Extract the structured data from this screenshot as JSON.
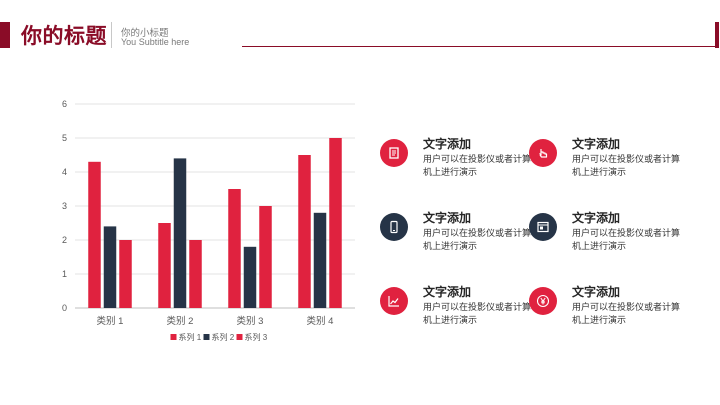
{
  "header": {
    "title": "你的标题",
    "subtitle": "你的小标题",
    "subtitle_en": "You Subtitle here"
  },
  "colors": {
    "accent": "#8a0c27",
    "red": "#e0223f",
    "navy": "#263447"
  },
  "chart_data": {
    "type": "bar",
    "categories": [
      "类别 1",
      "类别 2",
      "类别 3",
      "类别 4"
    ],
    "series": [
      {
        "name": "系列 1",
        "values": [
          4.3,
          2.5,
          3.5,
          4.5
        ],
        "color": "#e0223f"
      },
      {
        "name": "系列 2",
        "values": [
          2.4,
          4.4,
          1.8,
          2.8
        ],
        "color": "#263447"
      },
      {
        "name": "系列 3",
        "values": [
          2,
          2,
          3,
          5
        ],
        "color": "#e0223f"
      }
    ],
    "ylim": [
      0,
      6
    ],
    "yticks": [
      "0",
      "1",
      "2",
      "3",
      "4",
      "5",
      "6"
    ],
    "grid": true,
    "legend": "bottom"
  },
  "features": [
    {
      "title": "文字添加",
      "desc": "用户可以在投影仪或者计算机上进行演示",
      "icon": "document-icon",
      "color": "red"
    },
    {
      "title": "文字添加",
      "desc": "用户可以在投影仪或者计算机上进行演示",
      "icon": "touch-icon",
      "color": "red"
    },
    {
      "title": "文字添加",
      "desc": "用户可以在投影仪或者计算机上进行演示",
      "icon": "phone-icon",
      "color": "navy"
    },
    {
      "title": "文字添加",
      "desc": "用户可以在投影仪或者计算机上进行演示",
      "icon": "browser-icon",
      "color": "navy"
    },
    {
      "title": "文字添加",
      "desc": "用户可以在投影仪或者计算机上进行演示",
      "icon": "chart-line-icon",
      "color": "red"
    },
    {
      "title": "文字添加",
      "desc": "用户可以在投影仪或者计算机上进行演示",
      "icon": "yen-icon",
      "color": "red"
    }
  ]
}
